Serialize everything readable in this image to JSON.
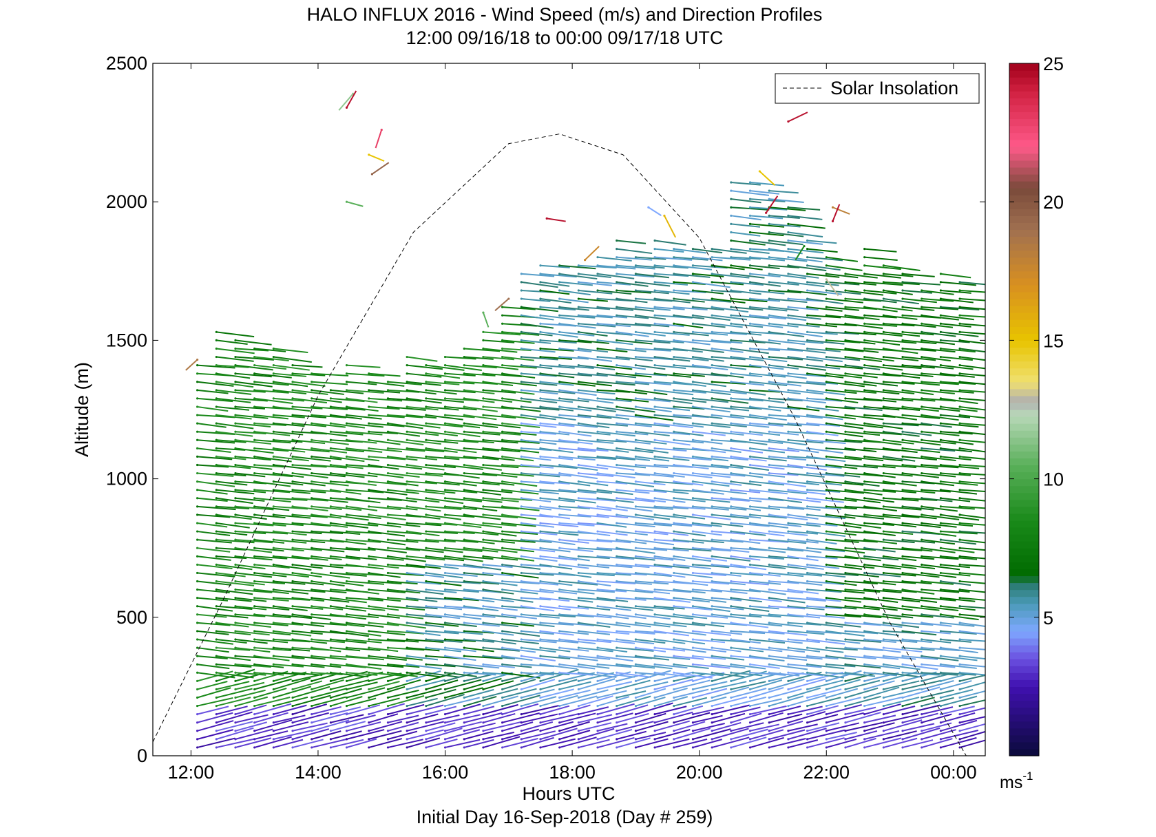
{
  "chart_data": {
    "type": "scatter",
    "title": "HALO INFLUX 2016 - Wind Speed (m/s) and Direction Profiles",
    "subtitle": "12:00 09/16/18 to 00:00 09/17/18  UTC",
    "xlabel": "Hours UTC",
    "ylabel": "Altitude (m)",
    "footer": "Initial Day 16-Sep-2018 (Day # 259)",
    "x_ticks": [
      "12:00",
      "14:00",
      "16:00",
      "18:00",
      "20:00",
      "22:00",
      "00:00"
    ],
    "x_tick_hours": [
      12,
      14,
      16,
      18,
      20,
      22,
      24
    ],
    "xlim": [
      11.4,
      24.5
    ],
    "y_ticks": [
      "0",
      "500",
      "1000",
      "1500",
      "2000",
      "2500"
    ],
    "ylim": [
      0,
      2500
    ],
    "colorbar": {
      "ticks": [
        "5",
        "10",
        "15",
        "20",
        "25"
      ],
      "range": [
        0,
        25
      ],
      "unit": "ms",
      "unit_exponent": "-1",
      "stops": [
        {
          "v": 0,
          "color": "#0a0a3a"
        },
        {
          "v": 2.5,
          "color": "#4010b0"
        },
        {
          "v": 3.5,
          "color": "#6a50e0"
        },
        {
          "v": 4.5,
          "color": "#7fa8ff"
        },
        {
          "v": 5.5,
          "color": "#4a9ab8"
        },
        {
          "v": 6.2,
          "color": "#2a7a70"
        },
        {
          "v": 6.5,
          "color": "#006a00"
        },
        {
          "v": 8.5,
          "color": "#1a8a1a"
        },
        {
          "v": 10.5,
          "color": "#5ab05a"
        },
        {
          "v": 12.3,
          "color": "#b8d8b8"
        },
        {
          "v": 12.8,
          "color": "#b0b0b0"
        },
        {
          "v": 13.5,
          "color": "#f0e070"
        },
        {
          "v": 15,
          "color": "#e8c400"
        },
        {
          "v": 17,
          "color": "#d89020"
        },
        {
          "v": 19,
          "color": "#a07050"
        },
        {
          "v": 20.5,
          "color": "#7a4a3a"
        },
        {
          "v": 22,
          "color": "#ff5a8a"
        },
        {
          "v": 24,
          "color": "#d02040"
        },
        {
          "v": 25,
          "color": "#a0001a"
        }
      ]
    },
    "legend": {
      "entries": [
        "Solar Insolation"
      ],
      "location": "top-right"
    },
    "solar_insolation": {
      "style": "dashed",
      "color": "#000000",
      "x": [
        11.4,
        12.5,
        14,
        15.5,
        17,
        17.8,
        18.8,
        20,
        21.5,
        23,
        24.2
      ],
      "y": [
        50,
        560,
        1300,
        1890,
        2210,
        2245,
        2170,
        1870,
        1220,
        480,
        0
      ]
    },
    "profile_times": [
      12.1,
      12.4,
      12.7,
      13.0,
      13.3,
      13.6,
      13.9,
      14.2,
      14.45,
      14.8,
      15.1,
      15.4,
      15.7,
      16.0,
      16.3,
      16.6,
      16.9,
      17.2,
      17.5,
      17.8,
      18.1,
      18.4,
      18.7,
      19.0,
      19.3,
      19.6,
      19.9,
      20.2,
      20.5,
      20.8,
      21.1,
      21.4,
      21.7,
      22.0,
      22.3,
      22.6,
      22.9,
      23.2,
      23.5,
      23.8,
      24.1
    ],
    "profile_tops": [
      1410,
      1540,
      1500,
      1490,
      1480,
      1410,
      1390,
      1340,
      1410,
      1380,
      1370,
      1450,
      1420,
      1460,
      1490,
      1550,
      1620,
      1740,
      1780,
      1790,
      1770,
      1810,
      1860,
      1820,
      1880,
      1830,
      1840,
      1830,
      2080,
      2070,
      2050,
      1980,
      1870,
      1800,
      1760,
      1850,
      1770,
      1740,
      1700,
      1740,
      1720
    ],
    "vector_altitude_step": 30,
    "scattered_upper_barbs": [
      {
        "t": 14.55,
        "z": 2390,
        "speed": 11.5
      },
      {
        "t": 14.45,
        "z": 2340,
        "speed": 24.5
      },
      {
        "t": 15.0,
        "z": 2260,
        "speed": 23.0
      },
      {
        "t": 14.8,
        "z": 2170,
        "speed": 15.0
      },
      {
        "t": 14.85,
        "z": 2100,
        "speed": 19.5
      },
      {
        "t": 14.45,
        "z": 2000,
        "speed": 10.5
      },
      {
        "t": 17.6,
        "z": 1940,
        "speed": 24.5
      },
      {
        "t": 17.0,
        "z": 1650,
        "speed": 19.0
      },
      {
        "t": 16.6,
        "z": 1600,
        "speed": 10.5
      },
      {
        "t": 18.2,
        "z": 1790,
        "speed": 17.5
      },
      {
        "t": 19.2,
        "z": 1980,
        "speed": 4.5
      },
      {
        "t": 19.45,
        "z": 1950,
        "speed": 15.5
      },
      {
        "t": 20.95,
        "z": 2110,
        "speed": 15.0
      },
      {
        "t": 21.05,
        "z": 1960,
        "speed": 24.5
      },
      {
        "t": 21.4,
        "z": 2290,
        "speed": 24.5
      },
      {
        "t": 21.65,
        "z": 1840,
        "speed": 8.5
      },
      {
        "t": 22.1,
        "z": 1980,
        "speed": 18.0
      },
      {
        "t": 22.1,
        "z": 1930,
        "speed": 24.5
      },
      {
        "t": 22.0,
        "z": 1720,
        "speed": 13.0
      },
      {
        "t": 12.1,
        "z": 1430,
        "speed": 18.5
      }
    ]
  }
}
